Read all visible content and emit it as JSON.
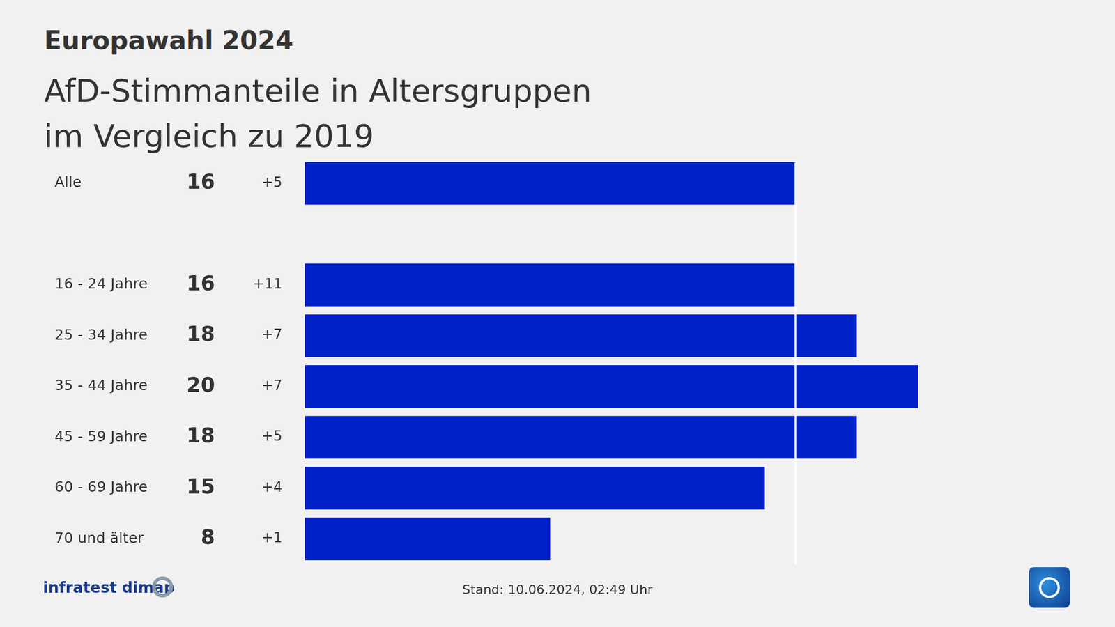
{
  "chart_data": {
    "type": "bar",
    "orientation": "horizontal",
    "title": "Europawahl 2024",
    "subtitle": [
      "AfD-Stimmanteile in Altersgruppen",
      "im Vergleich zu 2019"
    ],
    "categories": [
      "Alle",
      null,
      "16 - 24 Jahre",
      "25 - 34 Jahre",
      "35 - 44 Jahre",
      "45 - 59 Jahre",
      "60 - 69 Jahre",
      "70 und älter"
    ],
    "values": [
      16,
      null,
      16,
      18,
      20,
      18,
      15,
      8
    ],
    "changes": [
      5,
      null,
      11,
      7,
      7,
      5,
      4,
      1
    ],
    "change_labels": [
      "+5",
      null,
      "+11",
      "+7",
      "+7",
      "+5",
      "+4",
      "+1"
    ],
    "reference_value": 16,
    "color": "#0021c8",
    "xlim": [
      0,
      20
    ],
    "xticks": [],
    "grid": false,
    "data_labels": true,
    "tick_labels": "y",
    "source": "infratest dimap",
    "note": "Stand:  10.06.2024, 02:49 Uhr"
  }
}
